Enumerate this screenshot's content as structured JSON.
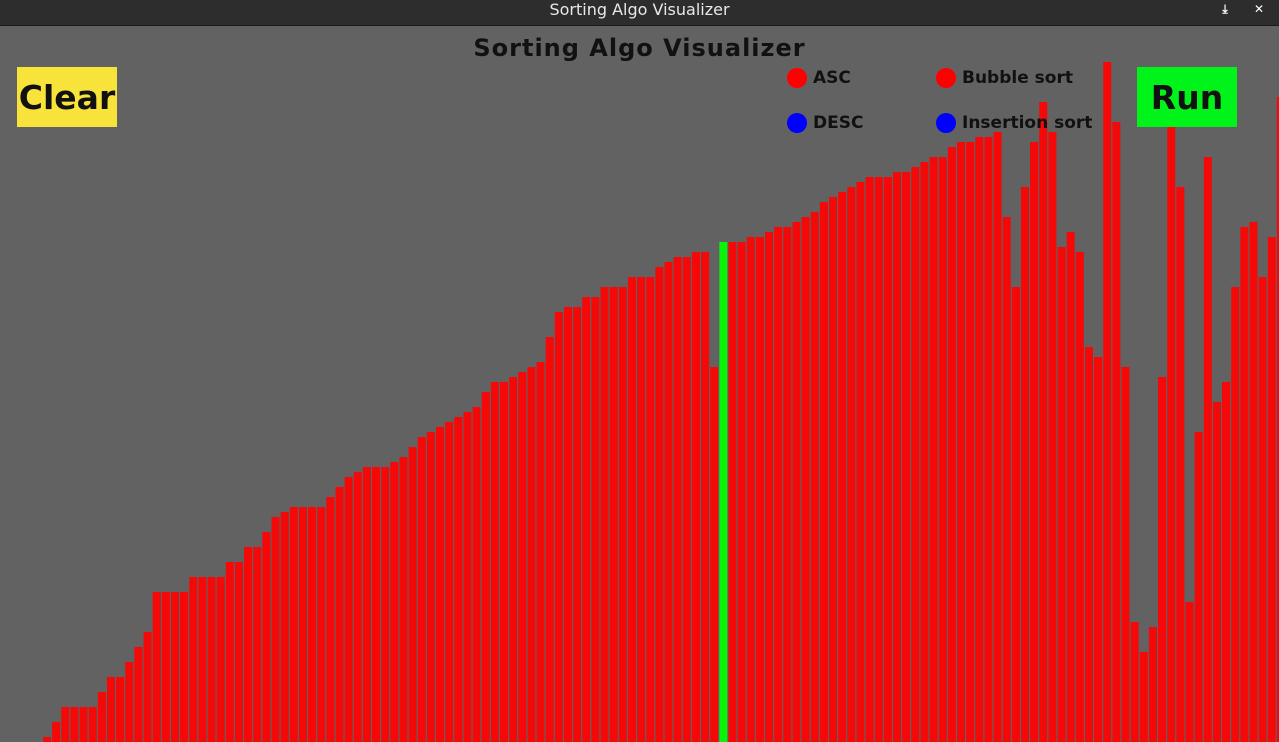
{
  "window": {
    "title": "Sorting Algo Visualizer",
    "minimize_glyph": "⤓",
    "close_glyph": "✕"
  },
  "app": {
    "title": "Sorting Algo Visualizer"
  },
  "buttons": {
    "clear_label": "Clear",
    "run_label": "Run"
  },
  "order_options": [
    {
      "label": "ASC",
      "state": "selected",
      "color": "#ff0000"
    },
    {
      "label": "DESC",
      "state": "unselected",
      "color": "#0000ff"
    }
  ],
  "algorithm_options": [
    {
      "label": "Bubble sort",
      "state": "selected",
      "color": "#ff0000"
    },
    {
      "label": "Insertion sort",
      "state": "unselected",
      "color": "#0000ff"
    }
  ],
  "colors": {
    "background": "#626262",
    "bar": "#f40808",
    "bar_active": "#0af40a",
    "clear_button": "#f8e33a",
    "run_button": "#00f41a"
  },
  "chart_data": {
    "type": "bar",
    "ylim": [
      0,
      500
    ],
    "active_index": 74,
    "values": [
      1,
      4,
      7,
      7,
      7,
      7,
      10,
      13,
      13,
      16,
      19,
      22,
      30,
      30,
      30,
      30,
      33,
      33,
      33,
      33,
      36,
      36,
      39,
      39,
      42,
      45,
      46,
      47,
      47,
      47,
      47,
      49,
      51,
      53,
      54,
      55,
      55,
      55,
      56,
      57,
      59,
      61,
      62,
      63,
      64,
      65,
      66,
      67,
      70,
      72,
      72,
      73,
      74,
      75,
      76,
      81,
      86,
      87,
      87,
      89,
      89,
      91,
      91,
      91,
      93,
      93,
      93,
      95,
      96,
      97,
      97,
      98,
      98,
      75,
      100,
      100,
      100,
      101,
      101,
      102,
      103,
      103,
      104,
      105,
      106,
      108,
      109,
      110,
      111,
      112,
      113,
      113,
      113,
      114,
      114,
      115,
      116,
      117,
      117,
      119,
      120,
      120,
      121,
      121,
      122,
      105,
      91,
      111,
      120,
      128,
      122,
      99,
      102,
      98,
      79,
      77,
      136,
      124,
      75,
      24,
      18,
      23,
      73,
      125,
      111,
      28,
      62,
      117,
      68,
      72,
      91,
      103,
      104,
      93,
      101,
      129,
      78,
      60,
      65,
      92,
      91,
      101,
      102,
      103,
      66,
      68,
      66
    ]
  }
}
